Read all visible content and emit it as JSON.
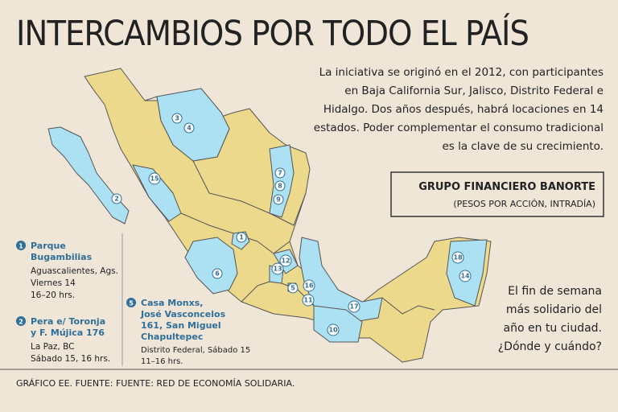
{
  "header": {
    "title": "INTERCAMBIOS POR TODO EL PAÍS"
  },
  "intro": {
    "lines": [
      "La iniciativa se originó en el 2012, con participantes",
      "en Baja California Sur, Jalisco, Distrito Federal e",
      "Hidalgo. Dos años después, habrá locaciones en 14",
      "estados. Poder complementar el consumo tradicional",
      "es la clave de su crecimiento."
    ]
  },
  "stock_box": {
    "title": "GRUPO FINANCIERO BANORTE",
    "subtitle": "(PESOS POR ACCIÓN, INTRADÍA)"
  },
  "map": {
    "markers": [
      "1",
      "2",
      "3",
      "4",
      "5",
      "6",
      "7",
      "8",
      "9",
      "10",
      "11",
      "12",
      "13",
      "14",
      "15",
      "16",
      "17",
      "18"
    ]
  },
  "legend": [
    {
      "number": "1",
      "name_lines": [
        "Parque",
        "Bugambilias"
      ],
      "detail_lines": [
        "Aguascalientes, Ags.",
        "Viernes 14",
        "16–20 hrs."
      ]
    },
    {
      "number": "2",
      "name_lines": [
        "Pera e/ Toronja",
        "y F. Mújica 176"
      ],
      "detail_lines": [
        "La Paz, BC",
        "Sábado 15, 16 hrs."
      ]
    },
    {
      "number": "5",
      "name_lines": [
        "Casa Monxs,",
        "José Vasconcelos",
        "161, San Miguel",
        "Chapultepec"
      ],
      "detail_lines": [
        "Distrito Federal, Sábado 15",
        "11–16 hrs."
      ]
    }
  ],
  "question": {
    "lines": [
      "El fin de semana",
      "más solidario del",
      "año en tu ciudad.",
      "¿Dónde y cuándo?"
    ]
  },
  "footer": {
    "source": "GRÁFICO EE. FUENTE: FUENTE: RED DE ECONOMÍA SOLIDARIA."
  }
}
